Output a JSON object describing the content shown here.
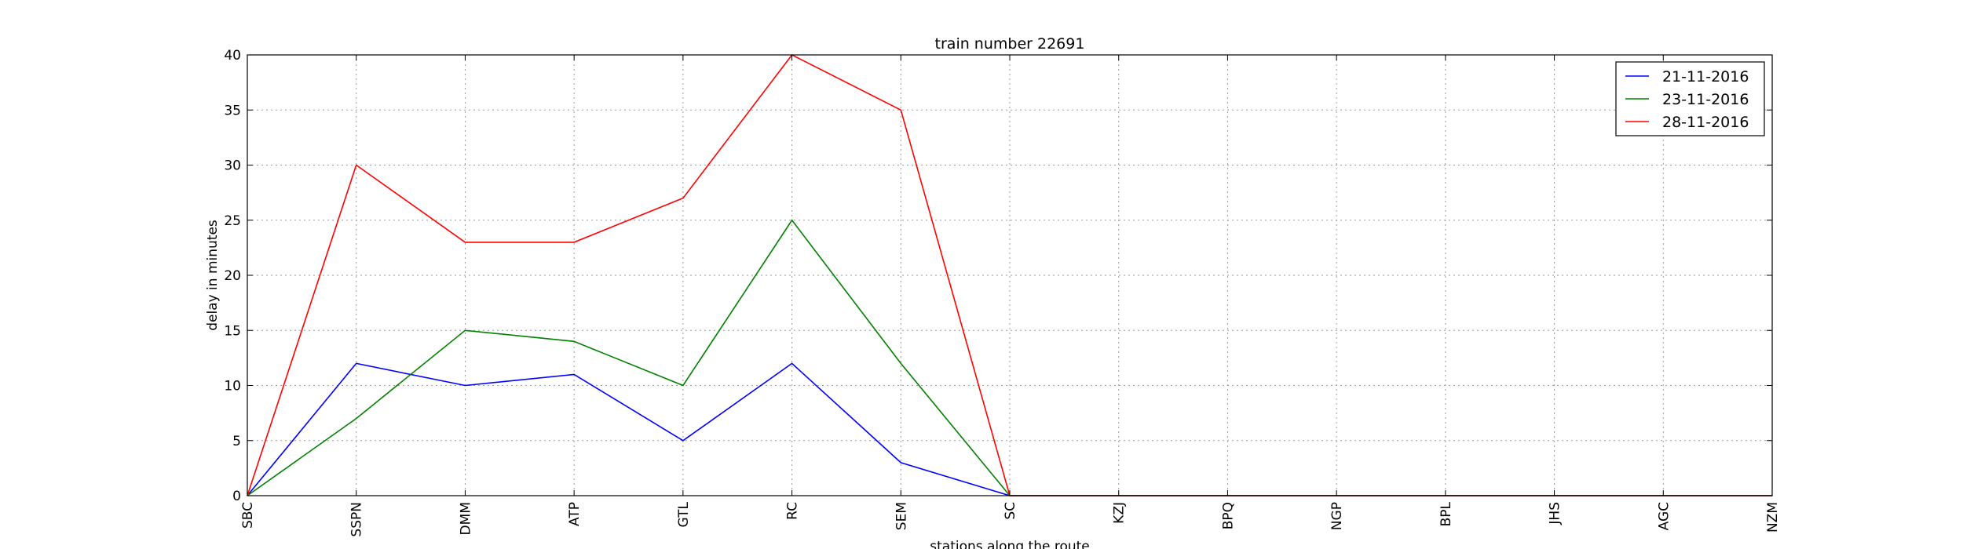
{
  "chart_data": {
    "type": "line",
    "title": "train number 22691",
    "xlabel": "stations along the route",
    "ylabel": "delay in minutes",
    "categories": [
      "SBC",
      "SSPN",
      "DMM",
      "ATP",
      "GTL",
      "RC",
      "SEM",
      "SC",
      "KZJ",
      "BPQ",
      "NGP",
      "BPL",
      "JHS",
      "AGC",
      "NZM"
    ],
    "ylim": [
      0,
      40
    ],
    "yticks": [
      0,
      5,
      10,
      15,
      20,
      25,
      30,
      35,
      40
    ],
    "grid": true,
    "legend_position": "top-right",
    "series": [
      {
        "name": "21-11-2016",
        "color": "#0000ff",
        "values": [
          0,
          12,
          10,
          11,
          5,
          12,
          3,
          0,
          0,
          0,
          0,
          0,
          0,
          0,
          0
        ]
      },
      {
        "name": "23-11-2016",
        "color": "#008000",
        "values": [
          0,
          7,
          15,
          14,
          10,
          25,
          12,
          0,
          0,
          0,
          0,
          0,
          0,
          0,
          0
        ]
      },
      {
        "name": "28-11-2016",
        "color": "#ff0000",
        "values": [
          0,
          30,
          23,
          23,
          27,
          40,
          35,
          0,
          0,
          0,
          0,
          0,
          0,
          0,
          0
        ]
      }
    ]
  }
}
